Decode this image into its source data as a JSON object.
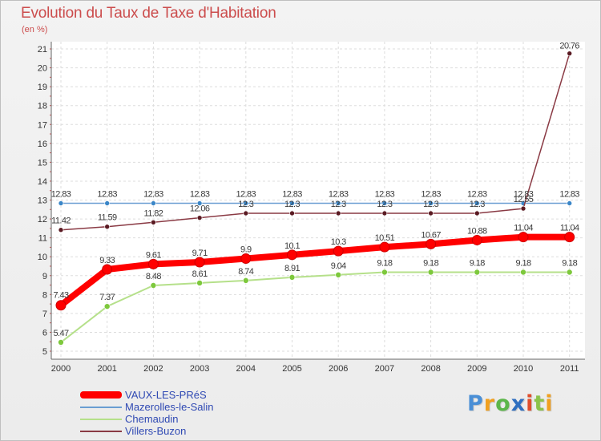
{
  "title": "Evolution du Taux de Taxe d'Habitation",
  "unit_label": "(en %)",
  "logo": "Proxiti",
  "logo_letters": [
    "P",
    "r",
    "o",
    "x",
    "i",
    "t",
    "i"
  ],
  "chart_data": {
    "type": "line",
    "title": "Evolution du Taux de Taxe d'Habitation",
    "ylabel": "(en %)",
    "xlabel": "",
    "x": [
      "2000",
      "2001",
      "2002",
      "2003",
      "2004",
      "2005",
      "2006",
      "2007",
      "2008",
      "2009",
      "2010",
      "2011"
    ],
    "ylim": [
      5,
      21
    ],
    "yticks": [
      5,
      6,
      7,
      8,
      9,
      10,
      11,
      12,
      13,
      14,
      15,
      16,
      17,
      18,
      19,
      20,
      21
    ],
    "grid": true,
    "legend_position": "bottom-left",
    "series": [
      {
        "name": "VAUX-LES-PRéS",
        "color": "#ff0000",
        "line_style": "thick",
        "values": [
          7.43,
          9.33,
          9.61,
          9.71,
          9.9,
          10.1,
          10.3,
          10.51,
          10.67,
          10.88,
          11.04,
          11.04
        ],
        "labels": [
          "7.43",
          "9.33",
          "9.61",
          "9.71",
          "9.9",
          "10.1",
          "10.3",
          "10.51",
          "10.67",
          "10.88",
          "11.04",
          "11.04"
        ]
      },
      {
        "name": "Mazerolles-le-Salin",
        "color": "#6a9ed2",
        "marker_color": "#3a86c8",
        "line_style": "thin",
        "values": [
          12.83,
          12.83,
          12.83,
          12.83,
          12.83,
          12.83,
          12.83,
          12.83,
          12.83,
          12.83,
          12.83,
          12.83
        ],
        "labels": [
          "12.83",
          "12.83",
          "12.83",
          "12.83",
          "12.83",
          "12.83",
          "12.83",
          "12.83",
          "12.83",
          "12.83",
          "12.83",
          "12.83"
        ]
      },
      {
        "name": "Chemaudin",
        "color": "#b5e08a",
        "marker_color": "#7dc83c",
        "line_style": "medium",
        "values": [
          5.47,
          7.37,
          8.48,
          8.61,
          8.74,
          8.91,
          9.04,
          9.18,
          9.18,
          9.18,
          9.18,
          9.18
        ],
        "labels": [
          "5.47",
          "7.37",
          "8.48",
          "8.61",
          "8.74",
          "8.91",
          "9.04",
          "9.18",
          "9.18",
          "9.18",
          "9.18",
          "9.18"
        ]
      },
      {
        "name": "Villers-Buzon",
        "color": "#8a3a44",
        "marker_color": "#5a1a22",
        "line_style": "thin",
        "values": [
          11.42,
          11.59,
          11.82,
          12.06,
          12.3,
          12.3,
          12.3,
          12.3,
          12.3,
          12.3,
          12.55,
          20.76
        ],
        "labels": [
          "11.42",
          "11.59",
          "11.82",
          "12.06",
          "12.3",
          "12.3",
          "12.3",
          "12.3",
          "12.3",
          "12.3",
          "12.55",
          "20.76"
        ]
      }
    ]
  }
}
